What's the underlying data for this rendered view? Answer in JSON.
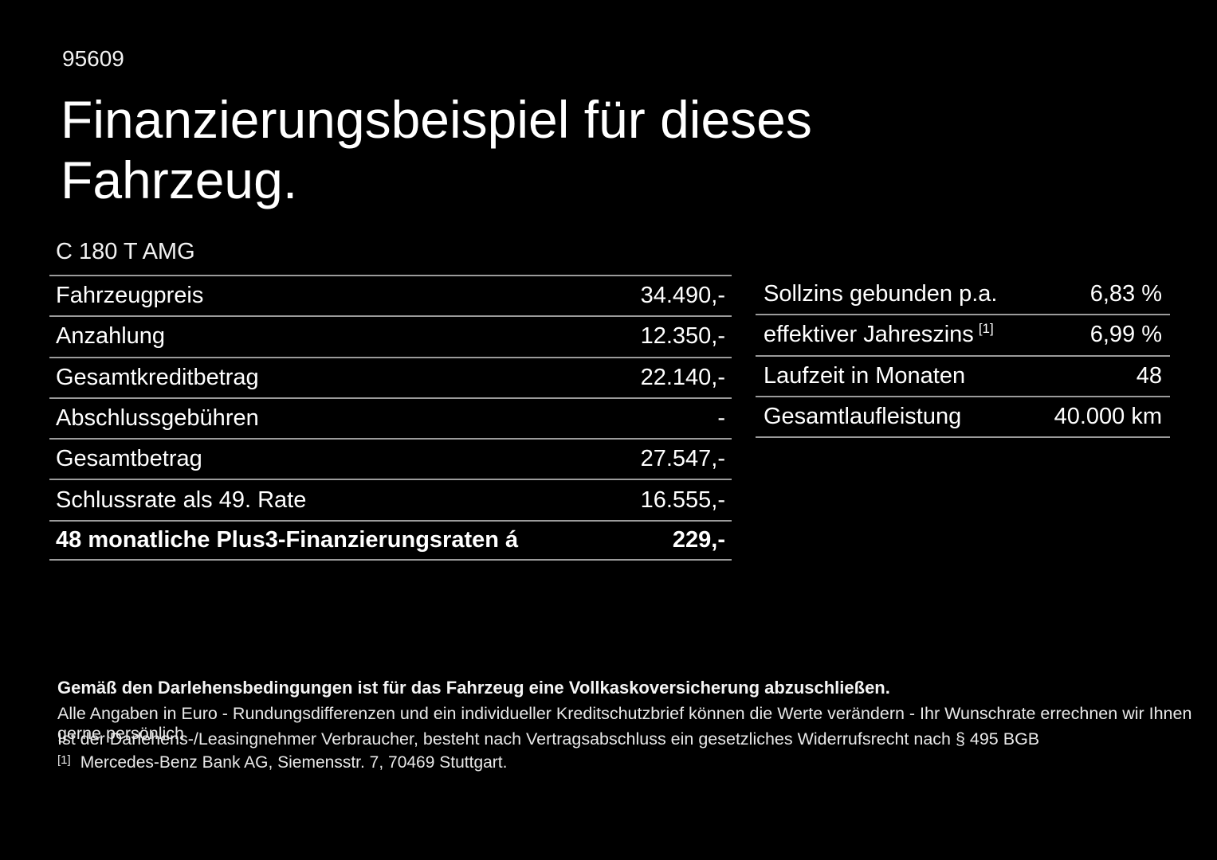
{
  "page": {
    "code": "95609",
    "title": "Finanzierungsbeispiel für dieses Fahrzeug.",
    "model": "C 180 T AMG"
  },
  "left_table": {
    "rows": [
      {
        "label": "Fahrzeugpreis",
        "value": "34.490,-"
      },
      {
        "label": "Anzahlung",
        "value": "12.350,-"
      },
      {
        "label": "Gesamtkreditbetrag",
        "value": "22.140,-"
      },
      {
        "label": "Abschlussgebühren",
        "value": "-"
      },
      {
        "label": "Gesamtbetrag",
        "value": "27.547,-"
      },
      {
        "label": "Schlussrate als 49. Rate",
        "value": "16.555,-"
      },
      {
        "label": "48 monatliche Plus3-Finanzierungsraten á",
        "value": "229,-"
      }
    ]
  },
  "right_table": {
    "rows": [
      {
        "label": "Sollzins gebunden p.a.",
        "sup": "",
        "value": "6,83 %"
      },
      {
        "label": "effektiver Jahreszins",
        "sup": "[1]",
        "value": "6,99 %"
      },
      {
        "label": "Laufzeit in Monaten",
        "sup": "",
        "value": "48"
      },
      {
        "label": "Gesamtlaufleistung",
        "sup": "",
        "value": "40.000 km"
      }
    ]
  },
  "footer": {
    "bold_note": "Gemäß den Darlehensbedingungen ist für das Fahrzeug eine Vollkaskoversicherung abzuschließen.",
    "note_line1": "Alle Angaben in Euro - Rundungsdifferenzen und ein individueller Kreditschutzbrief können die Werte verändern - Ihr Wunschrate errechnen wir Ihnen gerne persönlich",
    "note_line2": "Ist der Darlehens-/Leasingnehmer Verbraucher, besteht nach Vertragsabschluss ein gesetzliches Widerrufsrecht nach § 495 BGB",
    "footnote_marker": "[1]",
    "footnote_text": "Mercedes-Benz Bank AG, Siemensstr. 7, 70469 Stuttgart."
  },
  "colors": {
    "background": "#000000",
    "text": "#ffffff",
    "divider": "#9b9b9b"
  }
}
